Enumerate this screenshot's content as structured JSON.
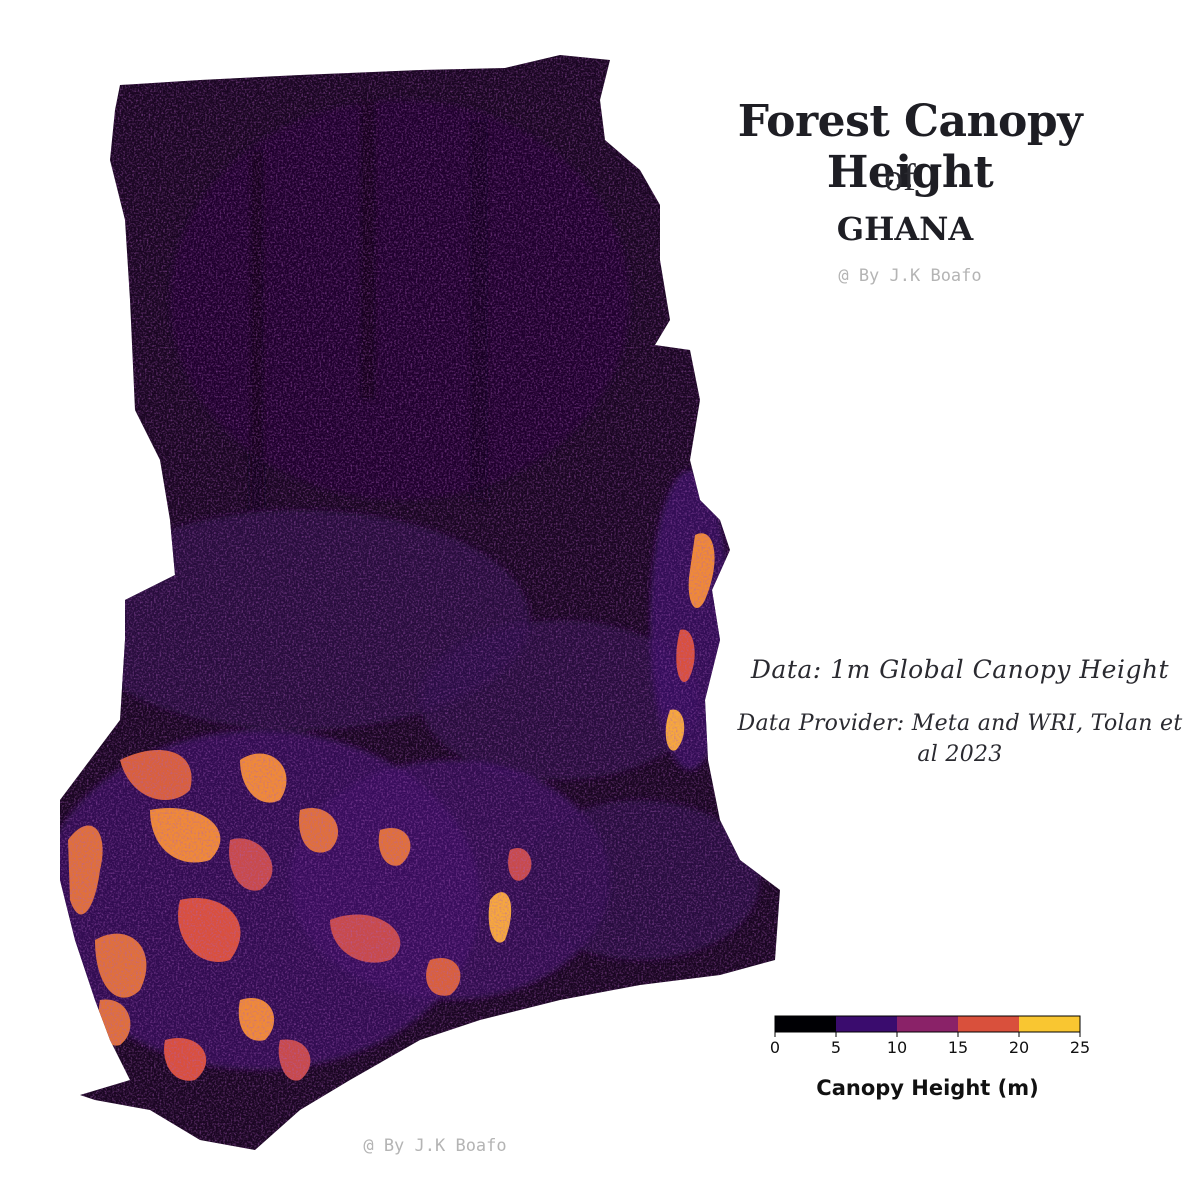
{
  "title": {
    "main": "Forest Canopy Height",
    "connector": "of",
    "country": "GHANA"
  },
  "credit": "@ By J.K Boafo",
  "data_source": "Data: 1m Global Canopy Height",
  "data_provider": "Data Provider: Meta and WRI, Tolan et al 2023",
  "legend": {
    "title": "Canopy Height (m)",
    "ticks": [
      "0",
      "5",
      "10",
      "15",
      "20",
      "25"
    ],
    "classes": [
      {
        "from": 0,
        "to": 5,
        "color": "#000004"
      },
      {
        "from": 5,
        "to": 10,
        "color": "#3a0c6e"
      },
      {
        "from": 10,
        "to": 15,
        "color": "#8a2268"
      },
      {
        "from": 15,
        "to": 20,
        "color": "#d9503c"
      },
      {
        "from": 20,
        "to": 25,
        "color": "#f9c631"
      }
    ]
  },
  "colors": {
    "background": "#ffffff",
    "map_base": "#1a0622",
    "low_canopy": "#240a3a",
    "mid_canopy": "#45146a",
    "high_canopy": "#e0703a",
    "peak_canopy": "#f7a83c"
  }
}
